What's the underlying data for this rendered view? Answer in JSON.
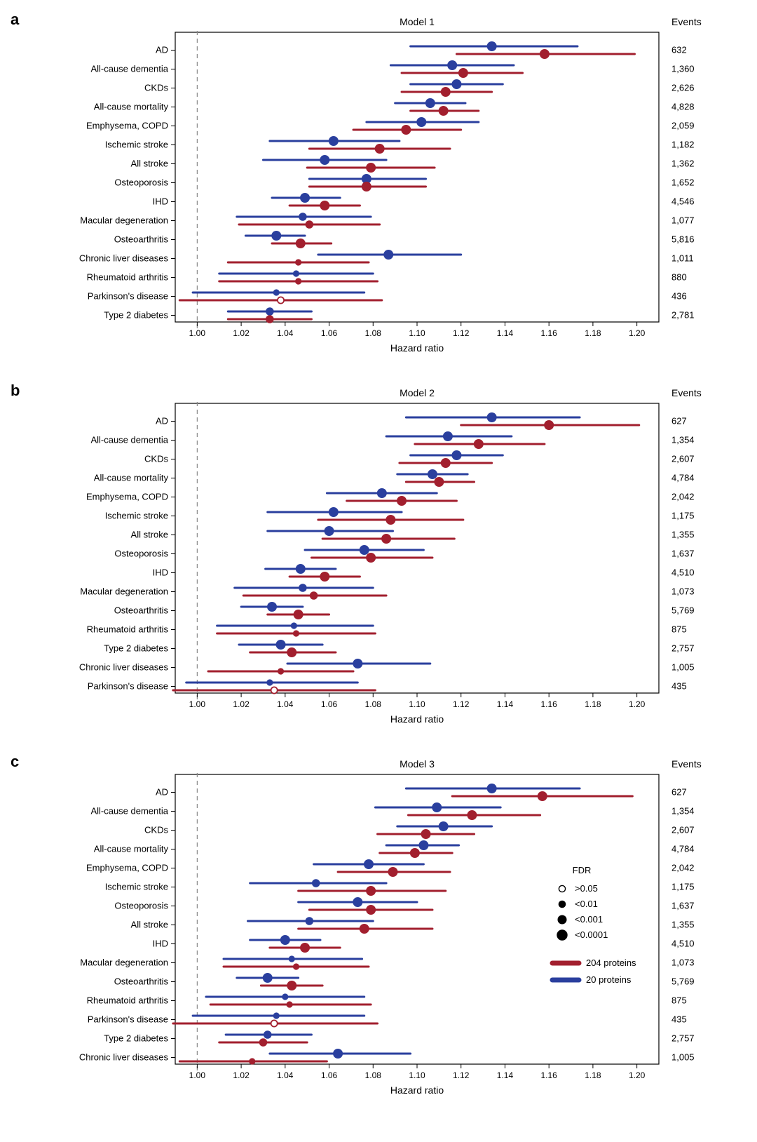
{
  "colors": {
    "red": "#a21f2e",
    "blue": "#2a3f9e",
    "axis": "#000000",
    "grid": "#888888",
    "bg": "#ffffff"
  },
  "axis": {
    "label": "Hazard ratio",
    "label_fontsize": 14,
    "xmin": 0.99,
    "xmax": 1.21,
    "ref": 1.0,
    "ticks": [
      1.0,
      1.02,
      1.04,
      1.06,
      1.08,
      1.1,
      1.12,
      1.14,
      1.16,
      1.18,
      1.2
    ],
    "tick_fontsize": 12,
    "events_header": "Events"
  },
  "marker_sizes": {
    "p0001": 7.0,
    "p001": 5.8,
    "p01": 4.6,
    "open": 4.6
  },
  "legend_fdr": {
    "title": "FDR",
    "items": [
      {
        "label": ">0.05",
        "style": "open",
        "r": 4.6
      },
      {
        "label": "<0.01",
        "style": "solid",
        "r": 4.6
      },
      {
        "label": "<0.001",
        "style": "solid",
        "r": 5.8
      },
      {
        "label": "<0.0001",
        "style": "solid",
        "r": 7.0
      }
    ]
  },
  "legend_series": [
    {
      "label": "204 proteins",
      "color": "#a21f2e"
    },
    {
      "label": "20 proteins",
      "color": "#2a3f9e"
    }
  ],
  "panels": [
    {
      "id": "a",
      "title": "Model 1",
      "rows": [
        {
          "label": "AD",
          "events": "632",
          "red": {
            "hr": 1.158,
            "lo": 1.118,
            "hi": 1.199,
            "sz": "p0001"
          },
          "blue": {
            "hr": 1.134,
            "lo": 1.097,
            "hi": 1.173,
            "sz": "p0001"
          }
        },
        {
          "label": "All-cause dementia",
          "events": "1,360",
          "red": {
            "hr": 1.121,
            "lo": 1.093,
            "hi": 1.148,
            "sz": "p0001"
          },
          "blue": {
            "hr": 1.116,
            "lo": 1.088,
            "hi": 1.144,
            "sz": "p0001"
          }
        },
        {
          "label": "CKDs",
          "events": "2,626",
          "red": {
            "hr": 1.113,
            "lo": 1.093,
            "hi": 1.134,
            "sz": "p0001"
          },
          "blue": {
            "hr": 1.118,
            "lo": 1.097,
            "hi": 1.139,
            "sz": "p0001"
          }
        },
        {
          "label": "All-cause mortality",
          "events": "4,828",
          "red": {
            "hr": 1.112,
            "lo": 1.097,
            "hi": 1.128,
            "sz": "p0001"
          },
          "blue": {
            "hr": 1.106,
            "lo": 1.09,
            "hi": 1.122,
            "sz": "p0001"
          }
        },
        {
          "label": "Emphysema, COPD",
          "events": "2,059",
          "red": {
            "hr": 1.095,
            "lo": 1.071,
            "hi": 1.12,
            "sz": "p0001"
          },
          "blue": {
            "hr": 1.102,
            "lo": 1.077,
            "hi": 1.128,
            "sz": "p0001"
          }
        },
        {
          "label": "Ischemic stroke",
          "events": "1,182",
          "red": {
            "hr": 1.083,
            "lo": 1.051,
            "hi": 1.115,
            "sz": "p0001"
          },
          "blue": {
            "hr": 1.062,
            "lo": 1.033,
            "hi": 1.092,
            "sz": "p0001"
          }
        },
        {
          "label": "All stroke",
          "events": "1,362",
          "red": {
            "hr": 1.079,
            "lo": 1.05,
            "hi": 1.108,
            "sz": "p0001"
          },
          "blue": {
            "hr": 1.058,
            "lo": 1.03,
            "hi": 1.086,
            "sz": "p0001"
          }
        },
        {
          "label": "Osteoporosis",
          "events": "1,652",
          "red": {
            "hr": 1.077,
            "lo": 1.051,
            "hi": 1.104,
            "sz": "p0001"
          },
          "blue": {
            "hr": 1.077,
            "lo": 1.051,
            "hi": 1.104,
            "sz": "p0001"
          }
        },
        {
          "label": "IHD",
          "events": "4,546",
          "red": {
            "hr": 1.058,
            "lo": 1.042,
            "hi": 1.074,
            "sz": "p0001"
          },
          "blue": {
            "hr": 1.049,
            "lo": 1.034,
            "hi": 1.065,
            "sz": "p0001"
          }
        },
        {
          "label": "Macular degeneration",
          "events": "1,077",
          "red": {
            "hr": 1.051,
            "lo": 1.019,
            "hi": 1.083,
            "sz": "p001"
          },
          "blue": {
            "hr": 1.048,
            "lo": 1.018,
            "hi": 1.079,
            "sz": "p001"
          }
        },
        {
          "label": "Osteoarthritis",
          "events": "5,816",
          "red": {
            "hr": 1.047,
            "lo": 1.034,
            "hi": 1.061,
            "sz": "p0001"
          },
          "blue": {
            "hr": 1.036,
            "lo": 1.022,
            "hi": 1.049,
            "sz": "p0001"
          }
        },
        {
          "label": "Chronic liver diseases",
          "events": "1,011",
          "red": {
            "hr": 1.046,
            "lo": 1.014,
            "hi": 1.078,
            "sz": "p01"
          },
          "blue": {
            "hr": 1.087,
            "lo": 1.055,
            "hi": 1.12,
            "sz": "p0001"
          }
        },
        {
          "label": "Rheumatoid arthritis",
          "events": "880",
          "red": {
            "hr": 1.046,
            "lo": 1.01,
            "hi": 1.082,
            "sz": "p01"
          },
          "blue": {
            "hr": 1.045,
            "lo": 1.01,
            "hi": 1.08,
            "sz": "p01"
          }
        },
        {
          "label": "Parkinson's disease",
          "events": "436",
          "red": {
            "hr": 1.038,
            "lo": 0.992,
            "hi": 1.084,
            "sz": "open"
          },
          "blue": {
            "hr": 1.036,
            "lo": 0.998,
            "hi": 1.076,
            "sz": "p01"
          }
        },
        {
          "label": "Type 2 diabetes",
          "events": "2,781",
          "red": {
            "hr": 1.033,
            "lo": 1.014,
            "hi": 1.052,
            "sz": "p001"
          },
          "blue": {
            "hr": 1.033,
            "lo": 1.014,
            "hi": 1.052,
            "sz": "p001"
          }
        }
      ]
    },
    {
      "id": "b",
      "title": "Model 2",
      "rows": [
        {
          "label": "AD",
          "events": "627",
          "red": {
            "hr": 1.16,
            "lo": 1.12,
            "hi": 1.201,
            "sz": "p0001"
          },
          "blue": {
            "hr": 1.134,
            "lo": 1.095,
            "hi": 1.174,
            "sz": "p0001"
          }
        },
        {
          "label": "All-cause dementia",
          "events": "1,354",
          "red": {
            "hr": 1.128,
            "lo": 1.099,
            "hi": 1.158,
            "sz": "p0001"
          },
          "blue": {
            "hr": 1.114,
            "lo": 1.086,
            "hi": 1.143,
            "sz": "p0001"
          }
        },
        {
          "label": "CKDs",
          "events": "2,607",
          "red": {
            "hr": 1.113,
            "lo": 1.092,
            "hi": 1.134,
            "sz": "p0001"
          },
          "blue": {
            "hr": 1.118,
            "lo": 1.097,
            "hi": 1.139,
            "sz": "p0001"
          }
        },
        {
          "label": "All-cause mortality",
          "events": "4,784",
          "red": {
            "hr": 1.11,
            "lo": 1.095,
            "hi": 1.126,
            "sz": "p0001"
          },
          "blue": {
            "hr": 1.107,
            "lo": 1.091,
            "hi": 1.123,
            "sz": "p0001"
          }
        },
        {
          "label": "Emphysema, COPD",
          "events": "2,042",
          "red": {
            "hr": 1.093,
            "lo": 1.068,
            "hi": 1.118,
            "sz": "p0001"
          },
          "blue": {
            "hr": 1.084,
            "lo": 1.059,
            "hi": 1.109,
            "sz": "p0001"
          }
        },
        {
          "label": "Ischemic stroke",
          "events": "1,175",
          "red": {
            "hr": 1.088,
            "lo": 1.055,
            "hi": 1.121,
            "sz": "p0001"
          },
          "blue": {
            "hr": 1.062,
            "lo": 1.032,
            "hi": 1.093,
            "sz": "p0001"
          }
        },
        {
          "label": "All stroke",
          "events": "1,355",
          "red": {
            "hr": 1.086,
            "lo": 1.057,
            "hi": 1.117,
            "sz": "p0001"
          },
          "blue": {
            "hr": 1.06,
            "lo": 1.032,
            "hi": 1.089,
            "sz": "p0001"
          }
        },
        {
          "label": "Osteoporosis",
          "events": "1,637",
          "red": {
            "hr": 1.079,
            "lo": 1.052,
            "hi": 1.107,
            "sz": "p0001"
          },
          "blue": {
            "hr": 1.076,
            "lo": 1.049,
            "hi": 1.103,
            "sz": "p0001"
          }
        },
        {
          "label": "IHD",
          "events": "4,510",
          "red": {
            "hr": 1.058,
            "lo": 1.042,
            "hi": 1.074,
            "sz": "p0001"
          },
          "blue": {
            "hr": 1.047,
            "lo": 1.031,
            "hi": 1.063,
            "sz": "p0001"
          }
        },
        {
          "label": "Macular degeneration",
          "events": "1,073",
          "red": {
            "hr": 1.053,
            "lo": 1.021,
            "hi": 1.086,
            "sz": "p001"
          },
          "blue": {
            "hr": 1.048,
            "lo": 1.017,
            "hi": 1.08,
            "sz": "p001"
          }
        },
        {
          "label": "Osteoarthritis",
          "events": "5,769",
          "red": {
            "hr": 1.046,
            "lo": 1.032,
            "hi": 1.06,
            "sz": "p0001"
          },
          "blue": {
            "hr": 1.034,
            "lo": 1.02,
            "hi": 1.048,
            "sz": "p0001"
          }
        },
        {
          "label": "Rheumatoid arthritis",
          "events": "875",
          "red": {
            "hr": 1.045,
            "lo": 1.009,
            "hi": 1.081,
            "sz": "p01"
          },
          "blue": {
            "hr": 1.044,
            "lo": 1.009,
            "hi": 1.08,
            "sz": "p01"
          }
        },
        {
          "label": "Type 2 diabetes",
          "events": "2,757",
          "red": {
            "hr": 1.043,
            "lo": 1.024,
            "hi": 1.063,
            "sz": "p0001"
          },
          "blue": {
            "hr": 1.038,
            "lo": 1.019,
            "hi": 1.057,
            "sz": "p0001"
          }
        },
        {
          "label": "Chronic liver diseases",
          "events": "1,005",
          "red": {
            "hr": 1.038,
            "lo": 1.005,
            "hi": 1.071,
            "sz": "p01"
          },
          "blue": {
            "hr": 1.073,
            "lo": 1.041,
            "hi": 1.106,
            "sz": "p0001"
          }
        },
        {
          "label": "Parkinson's disease",
          "events": "435",
          "red": {
            "hr": 1.035,
            "lo": 0.989,
            "hi": 1.081,
            "sz": "open"
          },
          "blue": {
            "hr": 1.033,
            "lo": 0.995,
            "hi": 1.073,
            "sz": "p01"
          }
        }
      ]
    },
    {
      "id": "c",
      "title": "Model 3",
      "show_legend": true,
      "rows": [
        {
          "label": "AD",
          "events": "627",
          "red": {
            "hr": 1.157,
            "lo": 1.116,
            "hi": 1.198,
            "sz": "p0001"
          },
          "blue": {
            "hr": 1.134,
            "lo": 1.095,
            "hi": 1.174,
            "sz": "p0001"
          }
        },
        {
          "label": "All-cause dementia",
          "events": "1,354",
          "red": {
            "hr": 1.125,
            "lo": 1.096,
            "hi": 1.156,
            "sz": "p0001"
          },
          "blue": {
            "hr": 1.109,
            "lo": 1.081,
            "hi": 1.138,
            "sz": "p0001"
          }
        },
        {
          "label": "CKDs",
          "events": "2,607",
          "red": {
            "hr": 1.104,
            "lo": 1.082,
            "hi": 1.126,
            "sz": "p0001"
          },
          "blue": {
            "hr": 1.112,
            "lo": 1.091,
            "hi": 1.134,
            "sz": "p0001"
          }
        },
        {
          "label": "All-cause mortality",
          "events": "4,784",
          "red": {
            "hr": 1.099,
            "lo": 1.083,
            "hi": 1.116,
            "sz": "p0001"
          },
          "blue": {
            "hr": 1.103,
            "lo": 1.086,
            "hi": 1.119,
            "sz": "p0001"
          }
        },
        {
          "label": "Emphysema, COPD",
          "events": "2,042",
          "red": {
            "hr": 1.089,
            "lo": 1.064,
            "hi": 1.115,
            "sz": "p0001"
          },
          "blue": {
            "hr": 1.078,
            "lo": 1.053,
            "hi": 1.103,
            "sz": "p0001"
          }
        },
        {
          "label": "Ischemic stroke",
          "events": "1,175",
          "red": {
            "hr": 1.079,
            "lo": 1.046,
            "hi": 1.113,
            "sz": "p0001"
          },
          "blue": {
            "hr": 1.054,
            "lo": 1.024,
            "hi": 1.086,
            "sz": "p001"
          }
        },
        {
          "label": "Osteoporosis",
          "events": "1,637",
          "red": {
            "hr": 1.079,
            "lo": 1.051,
            "hi": 1.107,
            "sz": "p0001"
          },
          "blue": {
            "hr": 1.073,
            "lo": 1.046,
            "hi": 1.1,
            "sz": "p0001"
          }
        },
        {
          "label": "All stroke",
          "events": "1,355",
          "red": {
            "hr": 1.076,
            "lo": 1.046,
            "hi": 1.107,
            "sz": "p0001"
          },
          "blue": {
            "hr": 1.051,
            "lo": 1.023,
            "hi": 1.08,
            "sz": "p001"
          }
        },
        {
          "label": "IHD",
          "events": "4,510",
          "red": {
            "hr": 1.049,
            "lo": 1.033,
            "hi": 1.065,
            "sz": "p0001"
          },
          "blue": {
            "hr": 1.04,
            "lo": 1.024,
            "hi": 1.056,
            "sz": "p0001"
          }
        },
        {
          "label": "Macular degeneration",
          "events": "1,073",
          "red": {
            "hr": 1.045,
            "lo": 1.012,
            "hi": 1.078,
            "sz": "p01"
          },
          "blue": {
            "hr": 1.043,
            "lo": 1.012,
            "hi": 1.075,
            "sz": "p01"
          }
        },
        {
          "label": "Osteoarthritis",
          "events": "5,769",
          "red": {
            "hr": 1.043,
            "lo": 1.029,
            "hi": 1.057,
            "sz": "p0001"
          },
          "blue": {
            "hr": 1.032,
            "lo": 1.018,
            "hi": 1.046,
            "sz": "p0001"
          }
        },
        {
          "label": "Rheumatoid arthritis",
          "events": "875",
          "red": {
            "hr": 1.042,
            "lo": 1.006,
            "hi": 1.079,
            "sz": "p01"
          },
          "blue": {
            "hr": 1.04,
            "lo": 1.004,
            "hi": 1.076,
            "sz": "p01"
          }
        },
        {
          "label": "Parkinson's disease",
          "events": "435",
          "red": {
            "hr": 1.035,
            "lo": 0.989,
            "hi": 1.082,
            "sz": "open"
          },
          "blue": {
            "hr": 1.036,
            "lo": 0.998,
            "hi": 1.076,
            "sz": "p01"
          }
        },
        {
          "label": "Type 2 diabetes",
          "events": "2,757",
          "red": {
            "hr": 1.03,
            "lo": 1.01,
            "hi": 1.05,
            "sz": "p001"
          },
          "blue": {
            "hr": 1.032,
            "lo": 1.013,
            "hi": 1.052,
            "sz": "p001"
          }
        },
        {
          "label": "Chronic liver diseases",
          "events": "1,005",
          "red": {
            "hr": 1.025,
            "lo": 0.992,
            "hi": 1.059,
            "sz": "p01"
          },
          "blue": {
            "hr": 1.064,
            "lo": 1.033,
            "hi": 1.097,
            "sz": "p0001"
          }
        }
      ]
    }
  ]
}
